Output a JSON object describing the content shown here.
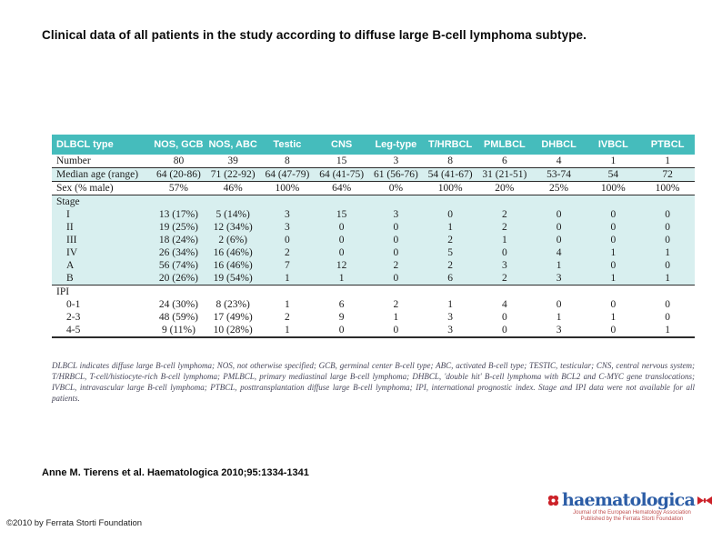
{
  "slide": {
    "title": "Clinical data of all patients in the study according to diffuse large B-cell lymphoma subtype.",
    "citation": "Anne M. Tierens et al. Haematologica 2010;95:1334-1341",
    "copyright": "©2010 by Ferrata Storti Foundation"
  },
  "theme": {
    "header_bg": "#45bcbc",
    "stripe_bg": "#d8efef",
    "wordmark_blue": "#2c5da6",
    "logo_red": "#cc2229"
  },
  "table": {
    "columns": [
      "DLBCL type",
      "NOS, GCB",
      "NOS, ABC",
      "Testic",
      "CNS",
      "Leg-type",
      "T/HRBCL",
      "PMLBCL",
      "DHBCL",
      "IVBCL",
      "PTBCL"
    ],
    "rows": [
      {
        "label": "Number",
        "shade": false,
        "rule": true,
        "values": [
          "80",
          "39",
          "8",
          "15",
          "3",
          "8",
          "6",
          "4",
          "1",
          "1"
        ]
      },
      {
        "label": "Median age (range)",
        "shade": true,
        "rule": true,
        "values": [
          "64 (20-86)",
          "71 (22-92)",
          "64 (47-79)",
          "64 (41-75)",
          "61 (56-76)",
          "54 (41-67)",
          "31 (21-51)",
          "53-74",
          "54",
          "72"
        ]
      },
      {
        "label": "Sex (% male)",
        "shade": false,
        "rule": true,
        "values": [
          "57%",
          "46%",
          "100%",
          "64%",
          "0%",
          "100%",
          "20%",
          "25%",
          "100%",
          "100%"
        ]
      },
      {
        "label": "Stage",
        "shade": true,
        "section": true,
        "values": [
          "",
          "",
          "",
          "",
          "",
          "",
          "",
          "",
          "",
          ""
        ]
      },
      {
        "label": "I",
        "shade": true,
        "indent": true,
        "values": [
          "13 (17%)",
          "5 (14%)",
          "3",
          "15",
          "3",
          "0",
          "2",
          "0",
          "0",
          "0"
        ]
      },
      {
        "label": "II",
        "shade": true,
        "indent": true,
        "values": [
          "19 (25%)",
          "12 (34%)",
          "3",
          "0",
          "0",
          "1",
          "2",
          "0",
          "0",
          "0"
        ]
      },
      {
        "label": "III",
        "shade": true,
        "indent": true,
        "values": [
          "18 (24%)",
          "2 (6%)",
          "0",
          "0",
          "0",
          "2",
          "1",
          "0",
          "0",
          "0"
        ]
      },
      {
        "label": "IV",
        "shade": true,
        "indent": true,
        "values": [
          "26 (34%)",
          "16 (46%)",
          "2",
          "0",
          "0",
          "5",
          "0",
          "4",
          "1",
          "1"
        ]
      },
      {
        "label": "A",
        "shade": true,
        "indent": true,
        "values": [
          "56 (74%)",
          "16 (46%)",
          "7",
          "12",
          "2",
          "2",
          "3",
          "1",
          "0",
          "0"
        ]
      },
      {
        "label": "B",
        "shade": true,
        "indent": true,
        "rule": true,
        "values": [
          "20 (26%)",
          "19 (54%)",
          "1",
          "1",
          "0",
          "6",
          "2",
          "3",
          "1",
          "1"
        ]
      },
      {
        "label": "IPI",
        "shade": false,
        "section": true,
        "values": [
          "",
          "",
          "",
          "",
          "",
          "",
          "",
          "",
          "",
          ""
        ]
      },
      {
        "label": "0-1",
        "shade": false,
        "indent": true,
        "values": [
          "24 (30%)",
          "8 (23%)",
          "1",
          "6",
          "2",
          "1",
          "4",
          "0",
          "0",
          "0"
        ]
      },
      {
        "label": "2-3",
        "shade": false,
        "indent": true,
        "values": [
          "48 (59%)",
          "17 (49%)",
          "2",
          "9",
          "1",
          "3",
          "0",
          "1",
          "1",
          "0"
        ]
      },
      {
        "label": "4-5",
        "shade": false,
        "indent": true,
        "bottom": true,
        "values": [
          "9 (11%)",
          "10 (28%)",
          "1",
          "0",
          "0",
          "3",
          "0",
          "3",
          "0",
          "1"
        ]
      }
    ],
    "footnote": "DLBCL indicates diffuse large B-cell lymphoma; NOS, not otherwise specified; GCB, germinal center B-cell type; ABC, activated B-cell type; TESTIC, testicular; CNS, central nervous system; T/HRBCL, T-cell/histiocyte-rich B-cell lymphoma; PMLBCL, primary mediastinal large B-cell lymphoma; DHBCL, 'double hit' B-cell lymphoma with BCL2 and C-MYC gene translocations; IVBCL, intravascular large B-cell lymphoma; PTBCL, posttransplantation diffuse large B-cell lymphoma; IPI, international prognostic index. Stage and IPI data were not available for all patients."
  },
  "logo": {
    "wordmark": "haematologica",
    "tagline_line1": "Journal of the European Hematology Association",
    "tagline_line2": "Published by the Ferrata Storti Foundation"
  }
}
